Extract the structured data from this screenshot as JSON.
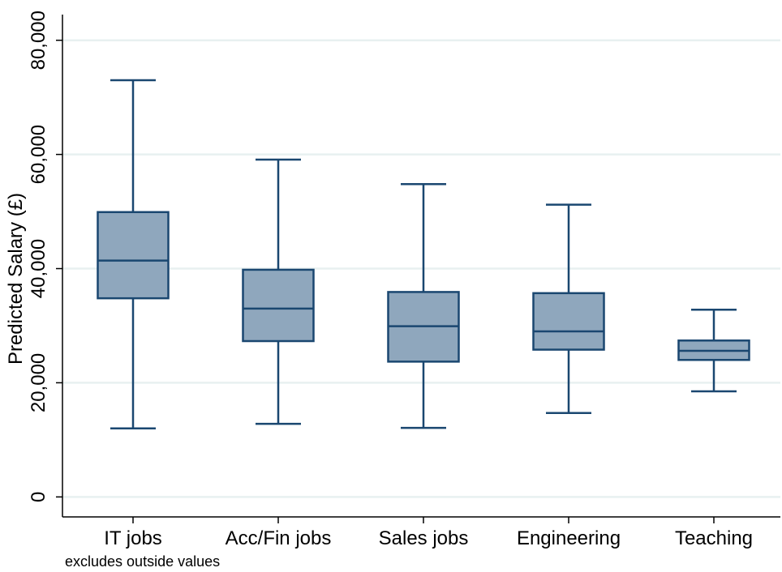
{
  "chart_data": {
    "type": "box",
    "ylabel": "Predicted Salary (£)",
    "yticks": [
      0,
      20000,
      40000,
      60000,
      80000
    ],
    "ytick_labels": [
      "0",
      "20,000",
      "40,000",
      "60,000",
      "80,000"
    ],
    "ylim": [
      -3500,
      84500
    ],
    "grid": true,
    "note": "excludes outside values",
    "categories": [
      "IT jobs",
      "Acc/Fin jobs",
      "Sales jobs",
      "Engineering",
      "Teaching"
    ],
    "boxes": [
      {
        "label": "IT jobs",
        "whisker_low": 12000,
        "q1": 34800,
        "median": 41400,
        "q3": 49900,
        "whisker_high": 73000
      },
      {
        "label": "Acc/Fin jobs",
        "whisker_low": 12800,
        "q1": 27300,
        "median": 33000,
        "q3": 39800,
        "whisker_high": 59100
      },
      {
        "label": "Sales jobs",
        "whisker_low": 12100,
        "q1": 23700,
        "median": 29900,
        "q3": 35900,
        "whisker_high": 54800
      },
      {
        "label": "Engineering",
        "whisker_low": 14700,
        "q1": 25800,
        "median": 29000,
        "q3": 35700,
        "whisker_high": 51200
      },
      {
        "label": "Teaching",
        "whisker_low": 18500,
        "q1": 24000,
        "median": 25600,
        "q3": 27400,
        "whisker_high": 32800
      }
    ],
    "colors": {
      "box_fill": "#8fa7bd",
      "box_stroke": "#1a4770",
      "grid": "#e8f0f0",
      "axis": "#000000"
    }
  }
}
